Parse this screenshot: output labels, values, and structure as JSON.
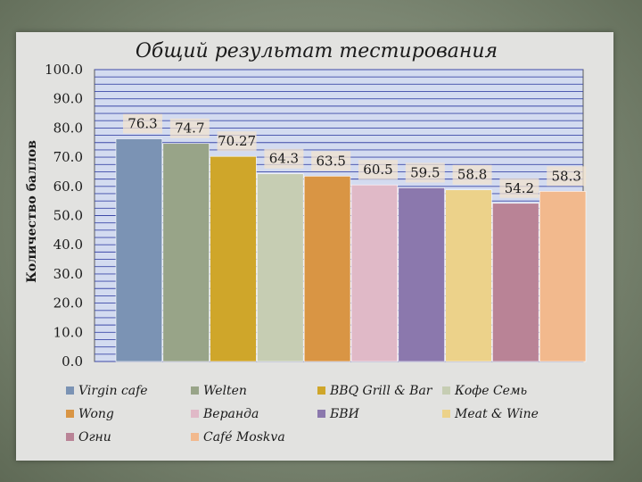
{
  "chart_data": {
    "type": "bar",
    "title": "Общий результат тестирования",
    "ylabel": "Количество баллов",
    "xlabel": "",
    "ylim": [
      0,
      100
    ],
    "yticks": [
      "0.0",
      "10.0",
      "20.0",
      "30.0",
      "40.0",
      "50.0",
      "60.0",
      "70.0",
      "80.0",
      "90.0",
      "100.0"
    ],
    "categories": [
      "Virgin cafe",
      "Welten",
      "BBQ Grill & Bar",
      "Кофе Семь",
      "Wong",
      "Веранда",
      "БВИ",
      "Meat & Wine",
      "Огни",
      "Café Moskva"
    ],
    "values": [
      76.3,
      74.7,
      70.27,
      64.3,
      63.5,
      60.5,
      59.5,
      58.8,
      54.2,
      58.3
    ],
    "data_labels": [
      "76.3",
      "74.7",
      "70.27",
      "64.3",
      "63.5",
      "60.5",
      "59.5",
      "58.8",
      "54.2",
      "58.3"
    ],
    "colors": [
      "#7b93b4",
      "#98a488",
      "#cfa62a",
      "#c6cdb3",
      "#d99544",
      "#e0b9c7",
      "#8b78ad",
      "#ecd28a",
      "#b98396",
      "#f2b98d"
    ],
    "grid": true,
    "legend_position": "bottom"
  }
}
